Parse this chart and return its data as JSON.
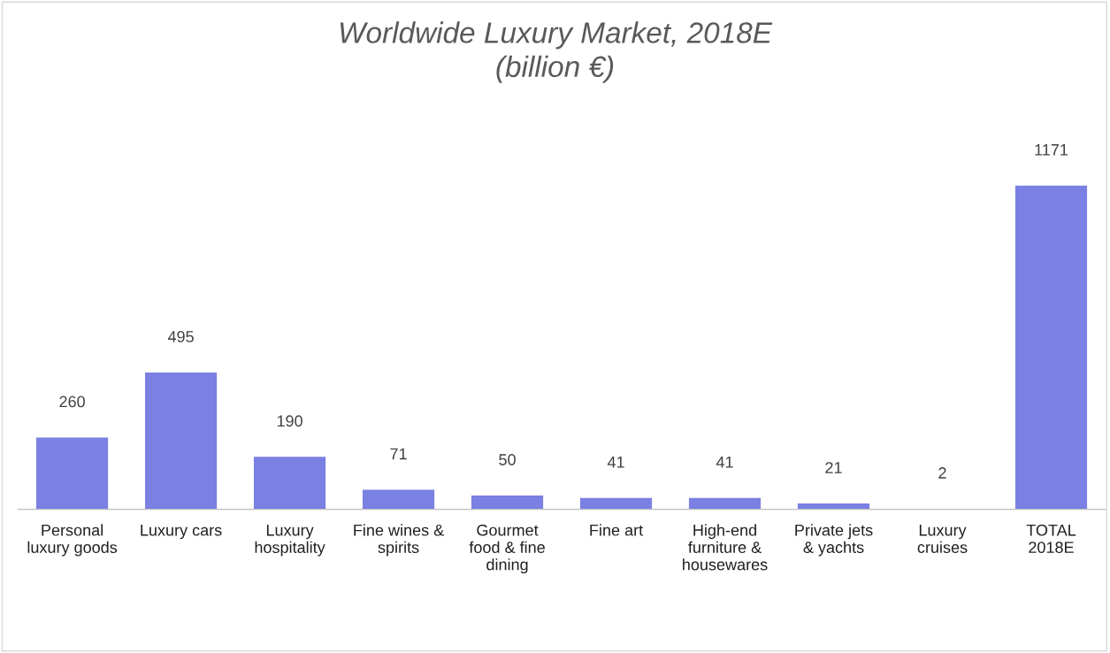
{
  "chart_data": {
    "type": "bar",
    "title": "Worldwide Luxury Market, 2018E\n(billion €)",
    "categories": [
      "Personal\nluxury goods",
      "Luxury cars",
      "Luxury\nhospitality",
      "Fine wines &\nspirits",
      "Gourmet\nfood & fine\ndining",
      "Fine art",
      "High-end\nfurniture &\nhousewares",
      "Private jets\n& yachts",
      "Luxury\ncruises",
      "TOTAL\n2018E"
    ],
    "values": [
      260,
      495,
      190,
      71,
      50,
      41,
      41,
      21,
      2,
      1171
    ],
    "color": "#7b80e3",
    "data_labels": true,
    "grid": false,
    "tick_labels": "x"
  }
}
